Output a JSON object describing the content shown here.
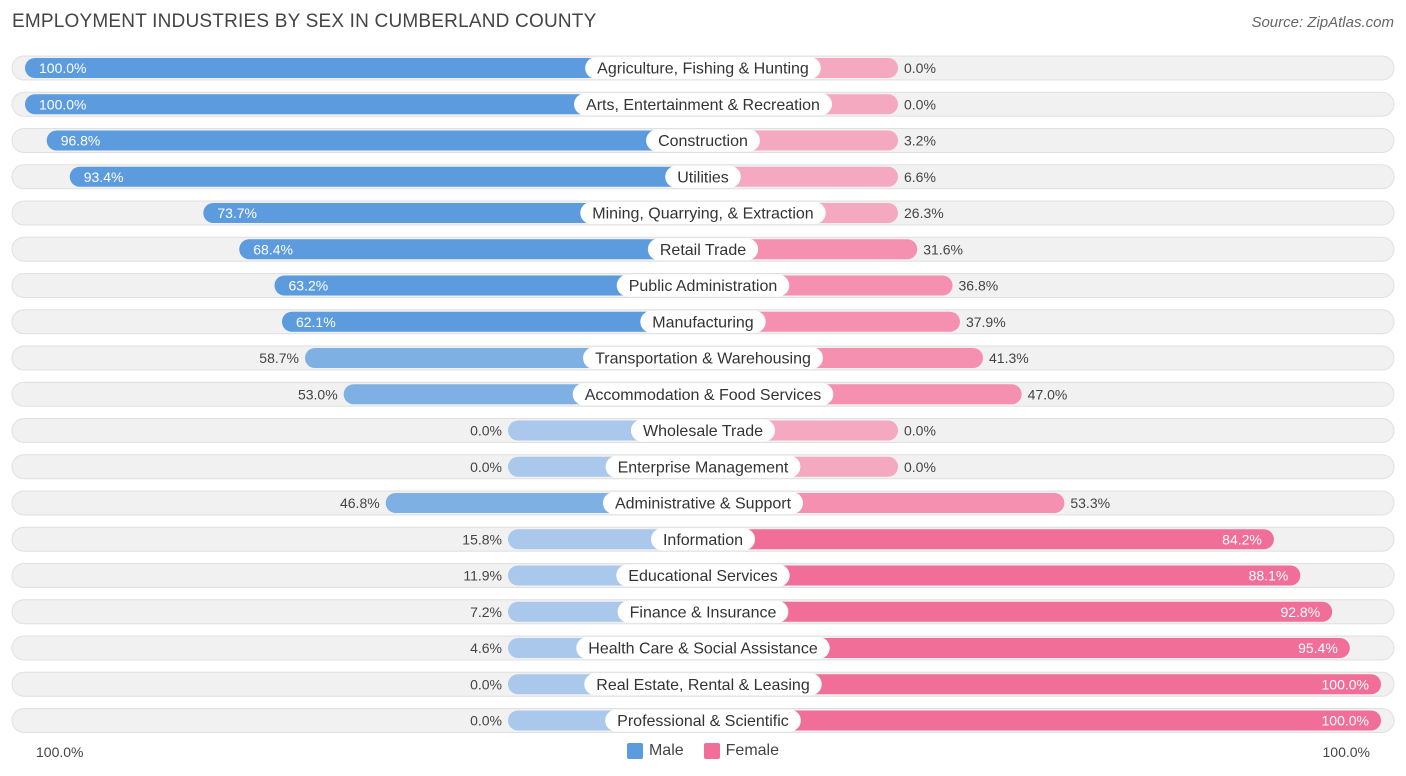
{
  "chart_data": {
    "type": "bar",
    "orientation": "horizontal-diverging",
    "title": "EMPLOYMENT INDUSTRIES BY SEX IN CUMBERLAND COUNTY",
    "source": "Source: ZipAtlas.com",
    "categories": [
      "Agriculture, Fishing & Hunting",
      "Arts, Entertainment & Recreation",
      "Construction",
      "Utilities",
      "Mining, Quarrying, & Extraction",
      "Retail Trade",
      "Public Administration",
      "Manufacturing",
      "Transportation & Warehousing",
      "Accommodation & Food Services",
      "Wholesale Trade",
      "Enterprise Management",
      "Administrative & Support",
      "Information",
      "Educational Services",
      "Finance & Insurance",
      "Health Care & Social Assistance",
      "Real Estate, Rental & Leasing",
      "Professional & Scientific"
    ],
    "series": [
      {
        "name": "Male",
        "values": [
          100.0,
          100.0,
          96.8,
          93.4,
          73.7,
          68.4,
          63.2,
          62.1,
          58.7,
          53.0,
          0.0,
          0.0,
          46.8,
          15.8,
          11.9,
          7.2,
          4.6,
          0.0,
          0.0
        ],
        "labels": [
          "100.0%",
          "100.0%",
          "96.8%",
          "93.4%",
          "73.7%",
          "68.4%",
          "63.2%",
          "62.1%",
          "58.7%",
          "53.0%",
          "0.0%",
          "0.0%",
          "46.8%",
          "15.8%",
          "11.9%",
          "7.2%",
          "4.6%",
          "0.0%",
          "0.0%"
        ]
      },
      {
        "name": "Female",
        "values": [
          0.0,
          0.0,
          3.2,
          6.6,
          26.3,
          31.6,
          36.8,
          37.9,
          41.3,
          47.0,
          0.0,
          0.0,
          53.3,
          84.2,
          88.1,
          92.8,
          95.4,
          100.0,
          100.0
        ],
        "labels": [
          "0.0%",
          "0.0%",
          "3.2%",
          "6.6%",
          "26.3%",
          "31.6%",
          "36.8%",
          "37.9%",
          "41.3%",
          "47.0%",
          "0.0%",
          "0.0%",
          "53.3%",
          "84.2%",
          "88.1%",
          "92.8%",
          "95.4%",
          "100.0%",
          "100.0%"
        ]
      }
    ],
    "axis_left_label": "100.0%",
    "axis_right_label": "100.0%",
    "xlim": [
      0,
      100
    ],
    "colors": {
      "male": "#5b9bde",
      "male_light": "#a9c8ec",
      "female": "#f06e97",
      "female_light": "#f5a9c1",
      "row_bg": "#f1f1f1",
      "row_border": "#e0e0e0"
    }
  }
}
